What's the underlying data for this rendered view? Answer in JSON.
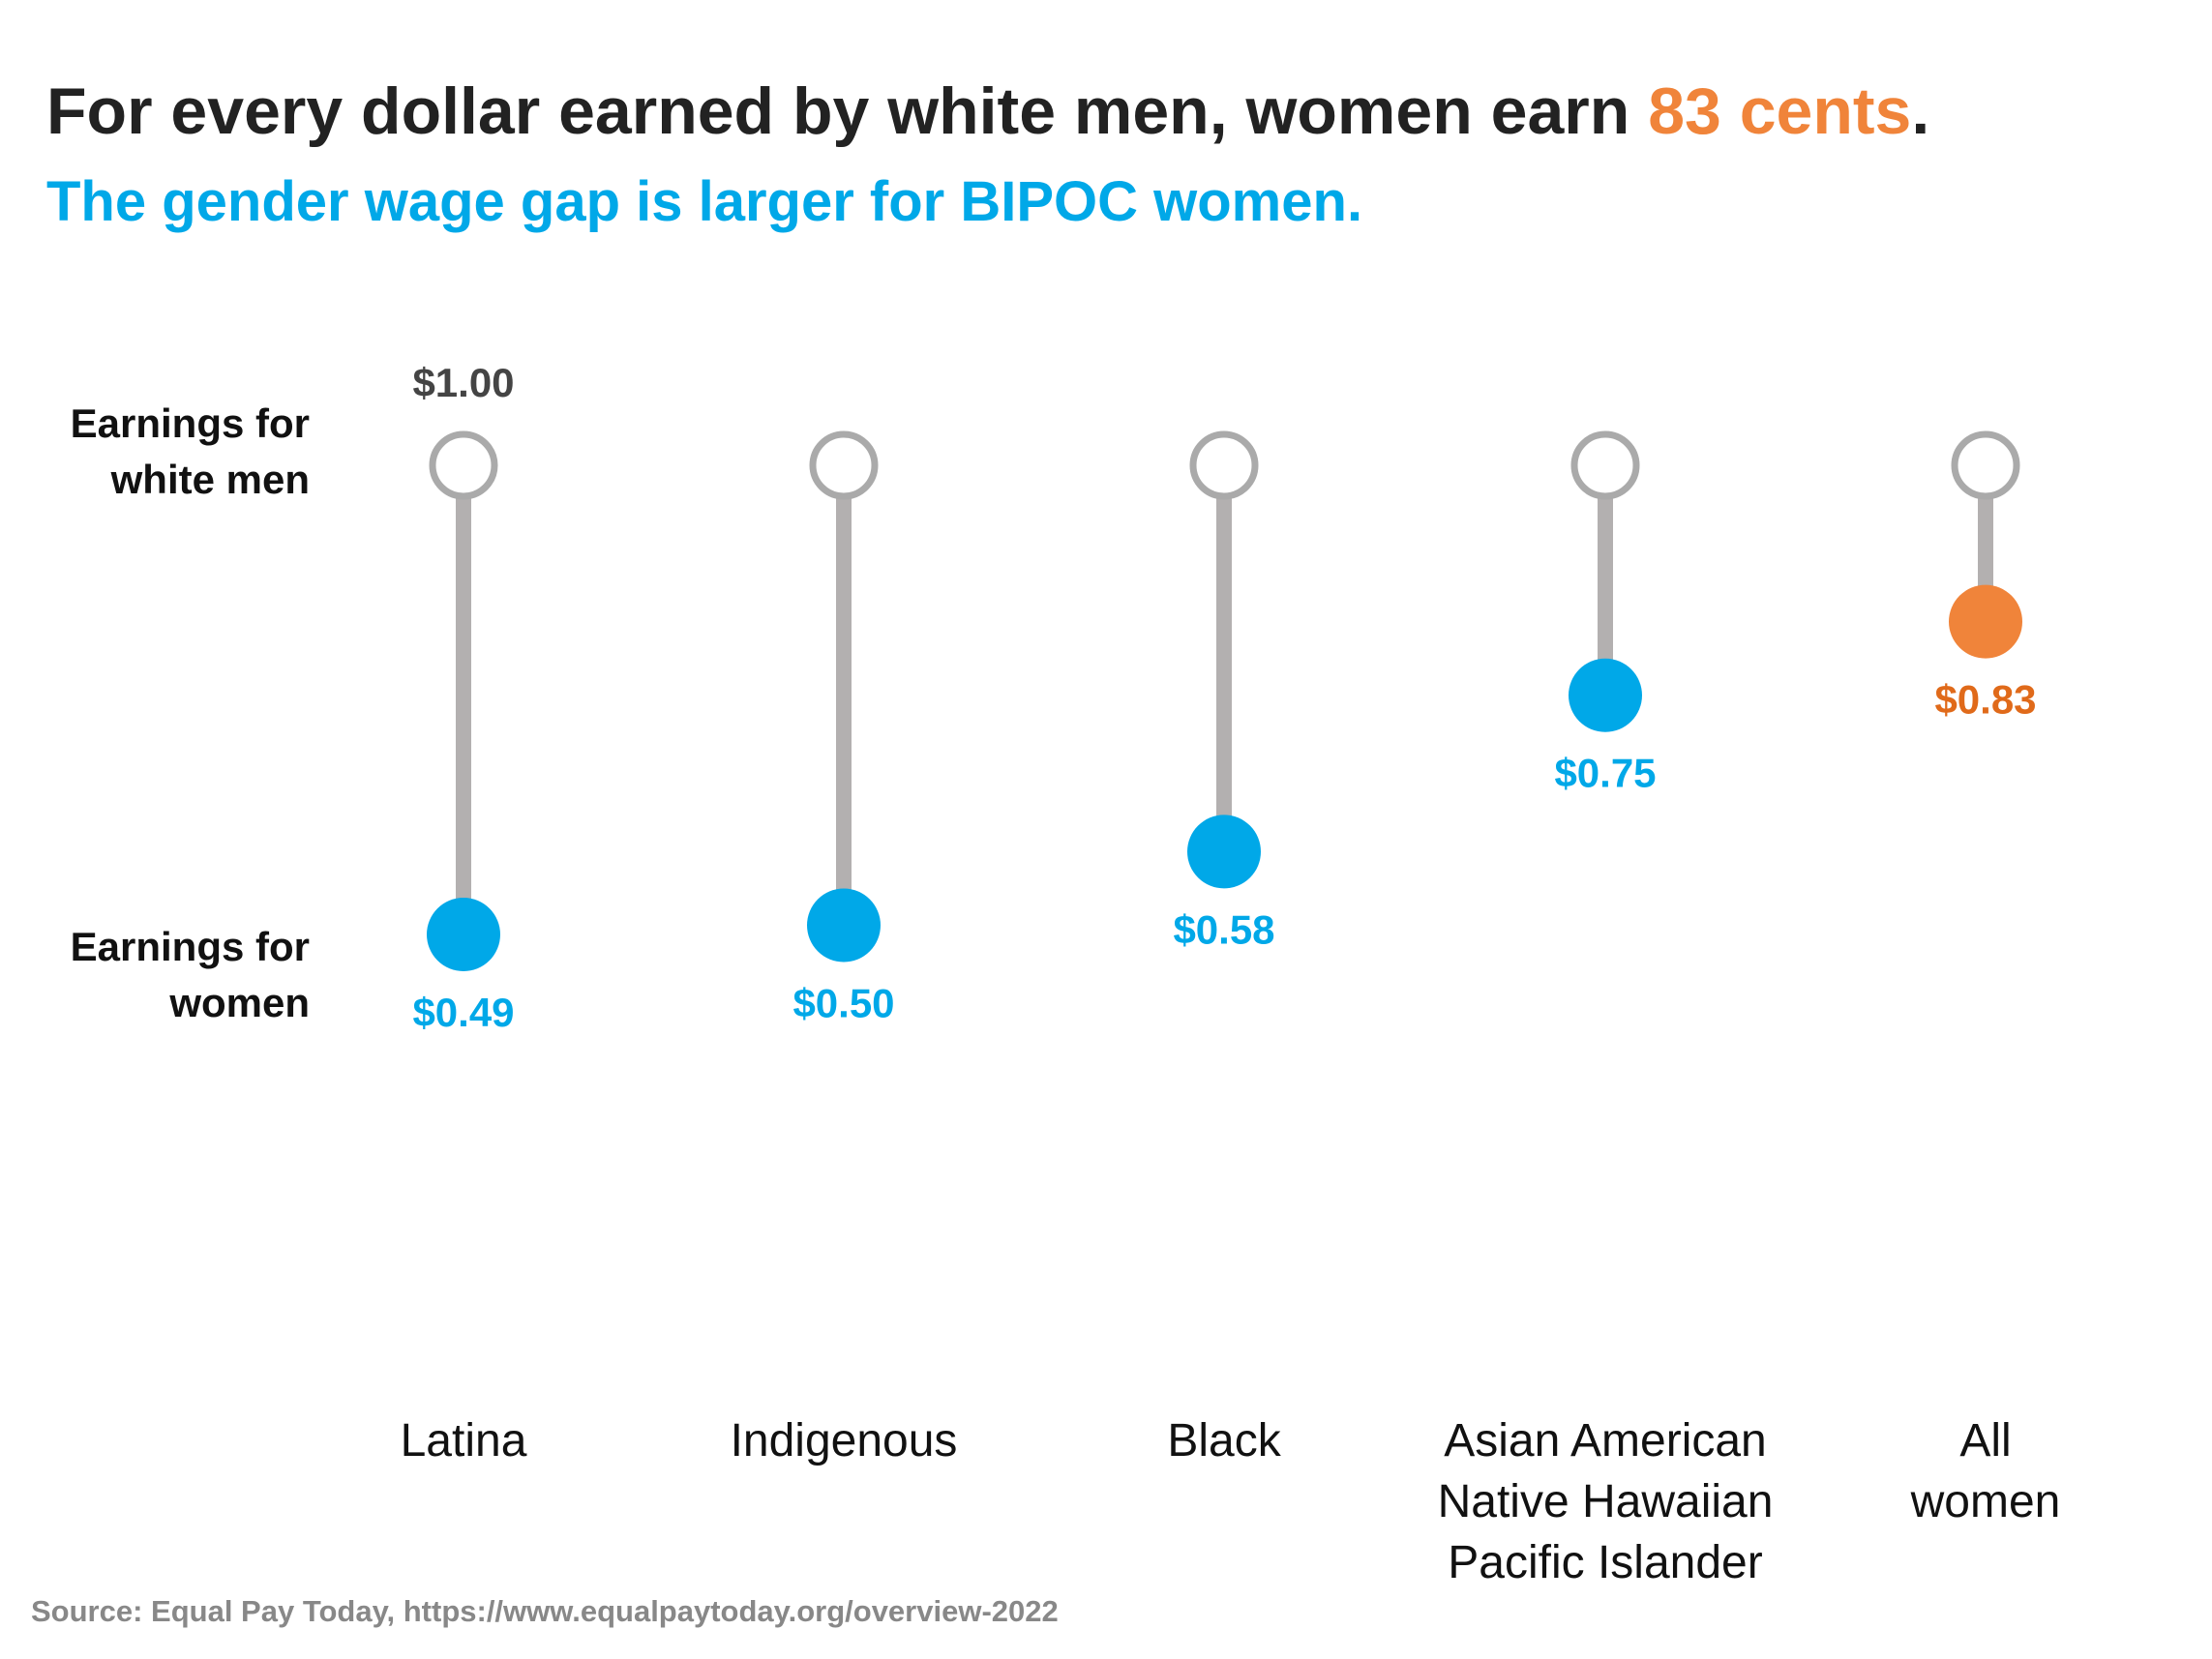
{
  "title": {
    "prefix": "For every dollar earned by white men, women earn ",
    "highlight": "83 cents",
    "suffix": "."
  },
  "subtitle": "The gender wage gap is larger for BIPOC women.",
  "source": "Source: Equal Pay Today, https://www.equalpaytoday.org/overview-2022",
  "colors": {
    "title": "#222222",
    "highlight": "#f0843a",
    "subtitle": "#00a8e8",
    "bipoc_point": "#00a8e8",
    "all_women_point": "#f0843a",
    "all_women_label": "#e06a1a",
    "connector": "#b3b0b0",
    "reference_ring": "#aaaaaa",
    "reference_label": "#444444",
    "source": "#888888",
    "axis_text": "#111111"
  },
  "row_labels": {
    "top": [
      "Earnings for",
      "white men"
    ],
    "bottom": [
      "Earnings for",
      "women"
    ]
  },
  "chart_data": {
    "type": "dot-plot",
    "reference": {
      "label": "Earnings for white men",
      "value": 1.0,
      "value_label": "$1.00"
    },
    "series_label": "Earnings for women",
    "categories": [
      {
        "label_lines": [
          "Latina"
        ],
        "value": 0.49,
        "value_label": "$0.49",
        "highlight": false
      },
      {
        "label_lines": [
          "Indigenous"
        ],
        "value": 0.5,
        "value_label": "$0.50",
        "highlight": false
      },
      {
        "label_lines": [
          "Black"
        ],
        "value": 0.58,
        "value_label": "$0.58",
        "highlight": false
      },
      {
        "label_lines": [
          "Asian American",
          "Native Hawaiian",
          "Pacific Islander"
        ],
        "value": 0.75,
        "value_label": "$0.75",
        "highlight": false
      },
      {
        "label_lines": [
          "All",
          "women"
        ],
        "value": 0.83,
        "value_label": "$0.83",
        "highlight": true
      }
    ],
    "ylim": [
      0.49,
      1.0
    ]
  }
}
